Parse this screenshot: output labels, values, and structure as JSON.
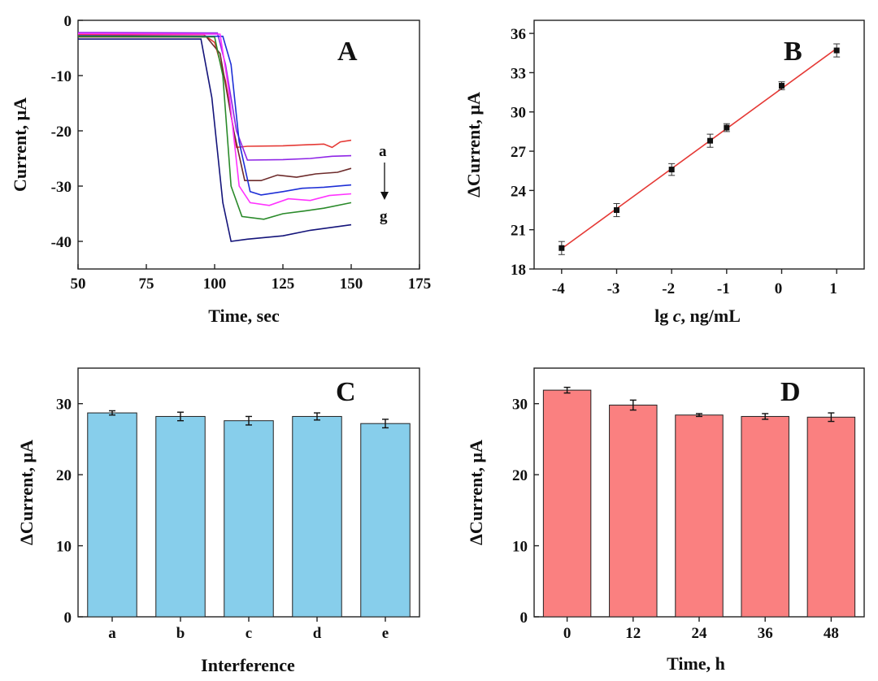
{
  "chart_data": [
    {
      "panel": "A",
      "type": "line",
      "panel_label": "A",
      "xlabel": "Time, sec",
      "ylabel": "Current, μA",
      "xlim": [
        50,
        175
      ],
      "ylim": [
        -45,
        0
      ],
      "xticks": [
        50,
        75,
        100,
        125,
        150,
        175
      ],
      "yticks": [
        0,
        -10,
        -20,
        -30,
        -40
      ],
      "annotation_top": "a",
      "annotation_bottom": "g",
      "series": [
        {
          "color": "#e53935",
          "values": [
            [
              50,
              -2.6
            ],
            [
              96,
              -2.6
            ],
            [
              100,
              -4
            ],
            [
              104,
              -11
            ],
            [
              108,
              -23
            ],
            [
              112,
              -22.8
            ],
            [
              125,
              -22.7
            ],
            [
              140,
              -22.4
            ],
            [
              143,
              -23
            ],
            [
              146,
              -22
            ],
            [
              150,
              -21.7
            ]
          ]
        },
        {
          "color": "#8e24e6",
          "values": [
            [
              50,
              -2.2
            ],
            [
              101,
              -2.3
            ],
            [
              104,
              -8
            ],
            [
              108,
              -20
            ],
            [
              112,
              -25.3
            ],
            [
              125,
              -25.2
            ],
            [
              135,
              -25.0
            ],
            [
              143,
              -24.6
            ],
            [
              150,
              -24.5
            ]
          ]
        },
        {
          "color": "#6d2b2b",
          "values": [
            [
              50,
              -3.0
            ],
            [
              97,
              -3.0
            ],
            [
              102,
              -6
            ],
            [
              107,
              -20
            ],
            [
              111,
              -29
            ],
            [
              117,
              -29
            ],
            [
              123,
              -28
            ],
            [
              130,
              -28.4
            ],
            [
              137,
              -27.8
            ],
            [
              145,
              -27.5
            ],
            [
              150,
              -26.8
            ]
          ]
        },
        {
          "color": "#1e2fd6",
          "values": [
            [
              50,
              -2.8
            ],
            [
              103,
              -2.9
            ],
            [
              106,
              -8
            ],
            [
              109,
              -22
            ],
            [
              113,
              -31
            ],
            [
              117,
              -31.6
            ],
            [
              125,
              -31
            ],
            [
              132,
              -30.4
            ],
            [
              140,
              -30.2
            ],
            [
              150,
              -29.8
            ]
          ]
        },
        {
          "color": "#ff33ff",
          "values": [
            [
              50,
              -2.4
            ],
            [
              102,
              -2.5
            ],
            [
              105,
              -12
            ],
            [
              109,
              -30
            ],
            [
              113,
              -33
            ],
            [
              120,
              -33.5
            ],
            [
              127,
              -32.3
            ],
            [
              135,
              -32.6
            ],
            [
              142,
              -31.7
            ],
            [
              150,
              -31.4
            ]
          ]
        },
        {
          "color": "#2a8a2a",
          "values": [
            [
              50,
              -2.9
            ],
            [
              100,
              -3.0
            ],
            [
              103,
              -10
            ],
            [
              106,
              -30
            ],
            [
              110,
              -35.5
            ],
            [
              118,
              -36
            ],
            [
              125,
              -35
            ],
            [
              133,
              -34.5
            ],
            [
              140,
              -34
            ],
            [
              150,
              -33
            ]
          ]
        },
        {
          "color": "#14147a",
          "values": [
            [
              50,
              -3.4
            ],
            [
              95,
              -3.4
            ],
            [
              99,
              -14
            ],
            [
              103,
              -33
            ],
            [
              106,
              -40
            ],
            [
              112,
              -39.6
            ],
            [
              125,
              -39
            ],
            [
              135,
              -38
            ],
            [
              150,
              -37
            ]
          ]
        }
      ]
    },
    {
      "panel": "B",
      "type": "scatter",
      "panel_label": "B",
      "xlabel": "lg c, ng/mL",
      "xlabel_pre": "lg ",
      "xlabel_var": "c",
      "xlabel_post": ", ng/mL",
      "ylabel": "ΔCurrent, μA",
      "xlim": [
        -4.5,
        1.5
      ],
      "ylim": [
        18,
        37
      ],
      "xticks": [
        -4,
        -3,
        -2,
        -1,
        0,
        1
      ],
      "yticks": [
        18,
        21,
        24,
        27,
        30,
        33,
        36
      ],
      "points": [
        {
          "x": -4,
          "y": 19.6,
          "err": 0.5
        },
        {
          "x": -3,
          "y": 22.5,
          "err": 0.5
        },
        {
          "x": -2,
          "y": 25.6,
          "err": 0.45
        },
        {
          "x": -1.3,
          "y": 27.8,
          "err": 0.5
        },
        {
          "x": -1,
          "y": 28.8,
          "err": 0.3
        },
        {
          "x": 0,
          "y": 32.0,
          "err": 0.3
        },
        {
          "x": 1,
          "y": 34.7,
          "err": 0.5
        }
      ],
      "fit": {
        "x1": -4,
        "y1": 19.55,
        "x2": 1,
        "y2": 34.85
      },
      "marker_color": "#111111",
      "fit_color": "#e53935"
    },
    {
      "panel": "C",
      "type": "bar",
      "panel_label": "C",
      "xlabel": "Interference",
      "ylabel": "ΔCurrent, μA",
      "ylim": [
        0,
        35
      ],
      "yticks": [
        0,
        10,
        20,
        30
      ],
      "categories": [
        "a",
        "b",
        "c",
        "d",
        "e"
      ],
      "values": [
        28.7,
        28.2,
        27.6,
        28.2,
        27.2
      ],
      "errors": [
        0.3,
        0.6,
        0.6,
        0.5,
        0.6
      ],
      "bar_color": "#87ceeb"
    },
    {
      "panel": "D",
      "type": "bar",
      "panel_label": "D",
      "xlabel": "Time, h",
      "ylabel": "ΔCurrent, μA",
      "ylim": [
        0,
        35
      ],
      "yticks": [
        0,
        10,
        20,
        30
      ],
      "categories": [
        "0",
        "12",
        "24",
        "36",
        "48"
      ],
      "values": [
        31.9,
        29.8,
        28.4,
        28.2,
        28.1
      ],
      "errors": [
        0.4,
        0.7,
        0.2,
        0.4,
        0.6
      ],
      "bar_color": "#fa8080"
    }
  ]
}
